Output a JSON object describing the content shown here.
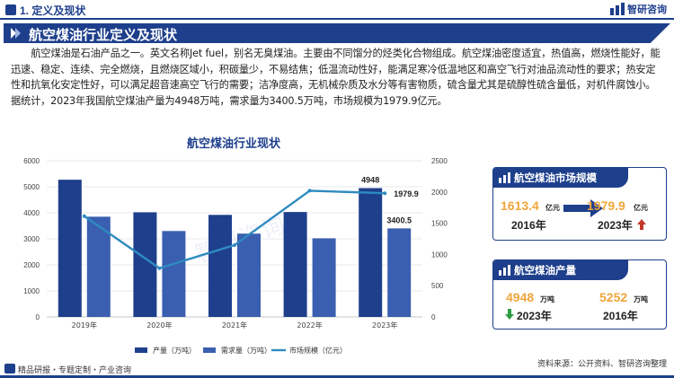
{
  "header": {
    "section_title": "1. 定义及现状",
    "logo_text": "智研咨询"
  },
  "banner": {
    "title": "航空煤油行业定义及现状"
  },
  "intro": {
    "paragraph": "航空煤油是石油产品之一。英文名称Jet fuel，别名无臭煤油。主要由不同馏分的烃类化合物组成。航空煤油密度适宜，热值高，燃烧性能好，能迅速、稳定、连续、完全燃烧，且燃烧区域小，积碳量少，不易结焦；低温流动性好，能满足寒冷低温地区和高空飞行对油品流动性的要求；热安定性和抗氧化安定性好，可以满足超音速高空飞行的需要；洁净度高，无机械杂质及水分等有害物质，硫含量尤其是硫醇性硫含量低，对机件腐蚀小。据统计，2023年我国航空煤油产量为4948万吨，需求量为3400.5万吨，市场规模为1979.9亿元。"
  },
  "chart_data": {
    "type": "bar",
    "title": "航空煤油行业现状",
    "categories": [
      "2019年",
      "2020年",
      "2021年",
      "2022年",
      "2023年"
    ],
    "series": [
      {
        "name": "产量（万吨）",
        "type": "bar",
        "axis": "left",
        "color": "#1e3f8c",
        "values": [
          5270,
          4020,
          3920,
          4030,
          4948
        ]
      },
      {
        "name": "需求量（万吨）",
        "type": "bar",
        "axis": "left",
        "color": "#3a5fb0",
        "values": [
          3850,
          3300,
          3200,
          3020,
          3400.5
        ]
      },
      {
        "name": "市场规模（亿元）",
        "type": "line",
        "axis": "right",
        "color": "#2e8bc0",
        "values": [
          1613.4,
          780,
          1150,
          2020,
          1979.9
        ]
      }
    ],
    "ylim_left": [
      0,
      6000
    ],
    "yticks_left": [
      "0",
      "1000",
      "2000",
      "3000",
      "4000",
      "5000",
      "6000"
    ],
    "ylim_right": [
      0,
      2500
    ],
    "yticks_right": [
      "0",
      "500",
      "1000",
      "1500",
      "2000",
      "2500"
    ],
    "data_labels": {
      "production_2023": "4948",
      "demand_2023": "3400.5",
      "market_2023": "1979.9"
    },
    "legend_position": "bottom",
    "watermark": "智研咨询"
  },
  "cards": {
    "market": {
      "title": "航空煤油市场规模",
      "value_a": "1613.4",
      "unit_a": "亿元",
      "year_a": "2016年",
      "value_b": "1979.9",
      "unit_b": "亿元",
      "year_b": "2023年",
      "trend_color": "#c0392b"
    },
    "production": {
      "title": "航空煤油产量",
      "value_a": "4948",
      "unit_a": "万吨",
      "year_a": "2023年",
      "value_b": "5252",
      "unit_b": "万吨",
      "year_b": "2016年",
      "trend_color": "#2e9e44"
    }
  },
  "footer": {
    "left": "精品研报・专题定制・产业咨询",
    "right": "资料来源：公开资料、智研咨询整理"
  },
  "colors": {
    "brand": "#1e3f8c",
    "accent": "#f0a63c",
    "line": "#2e8bc0"
  }
}
